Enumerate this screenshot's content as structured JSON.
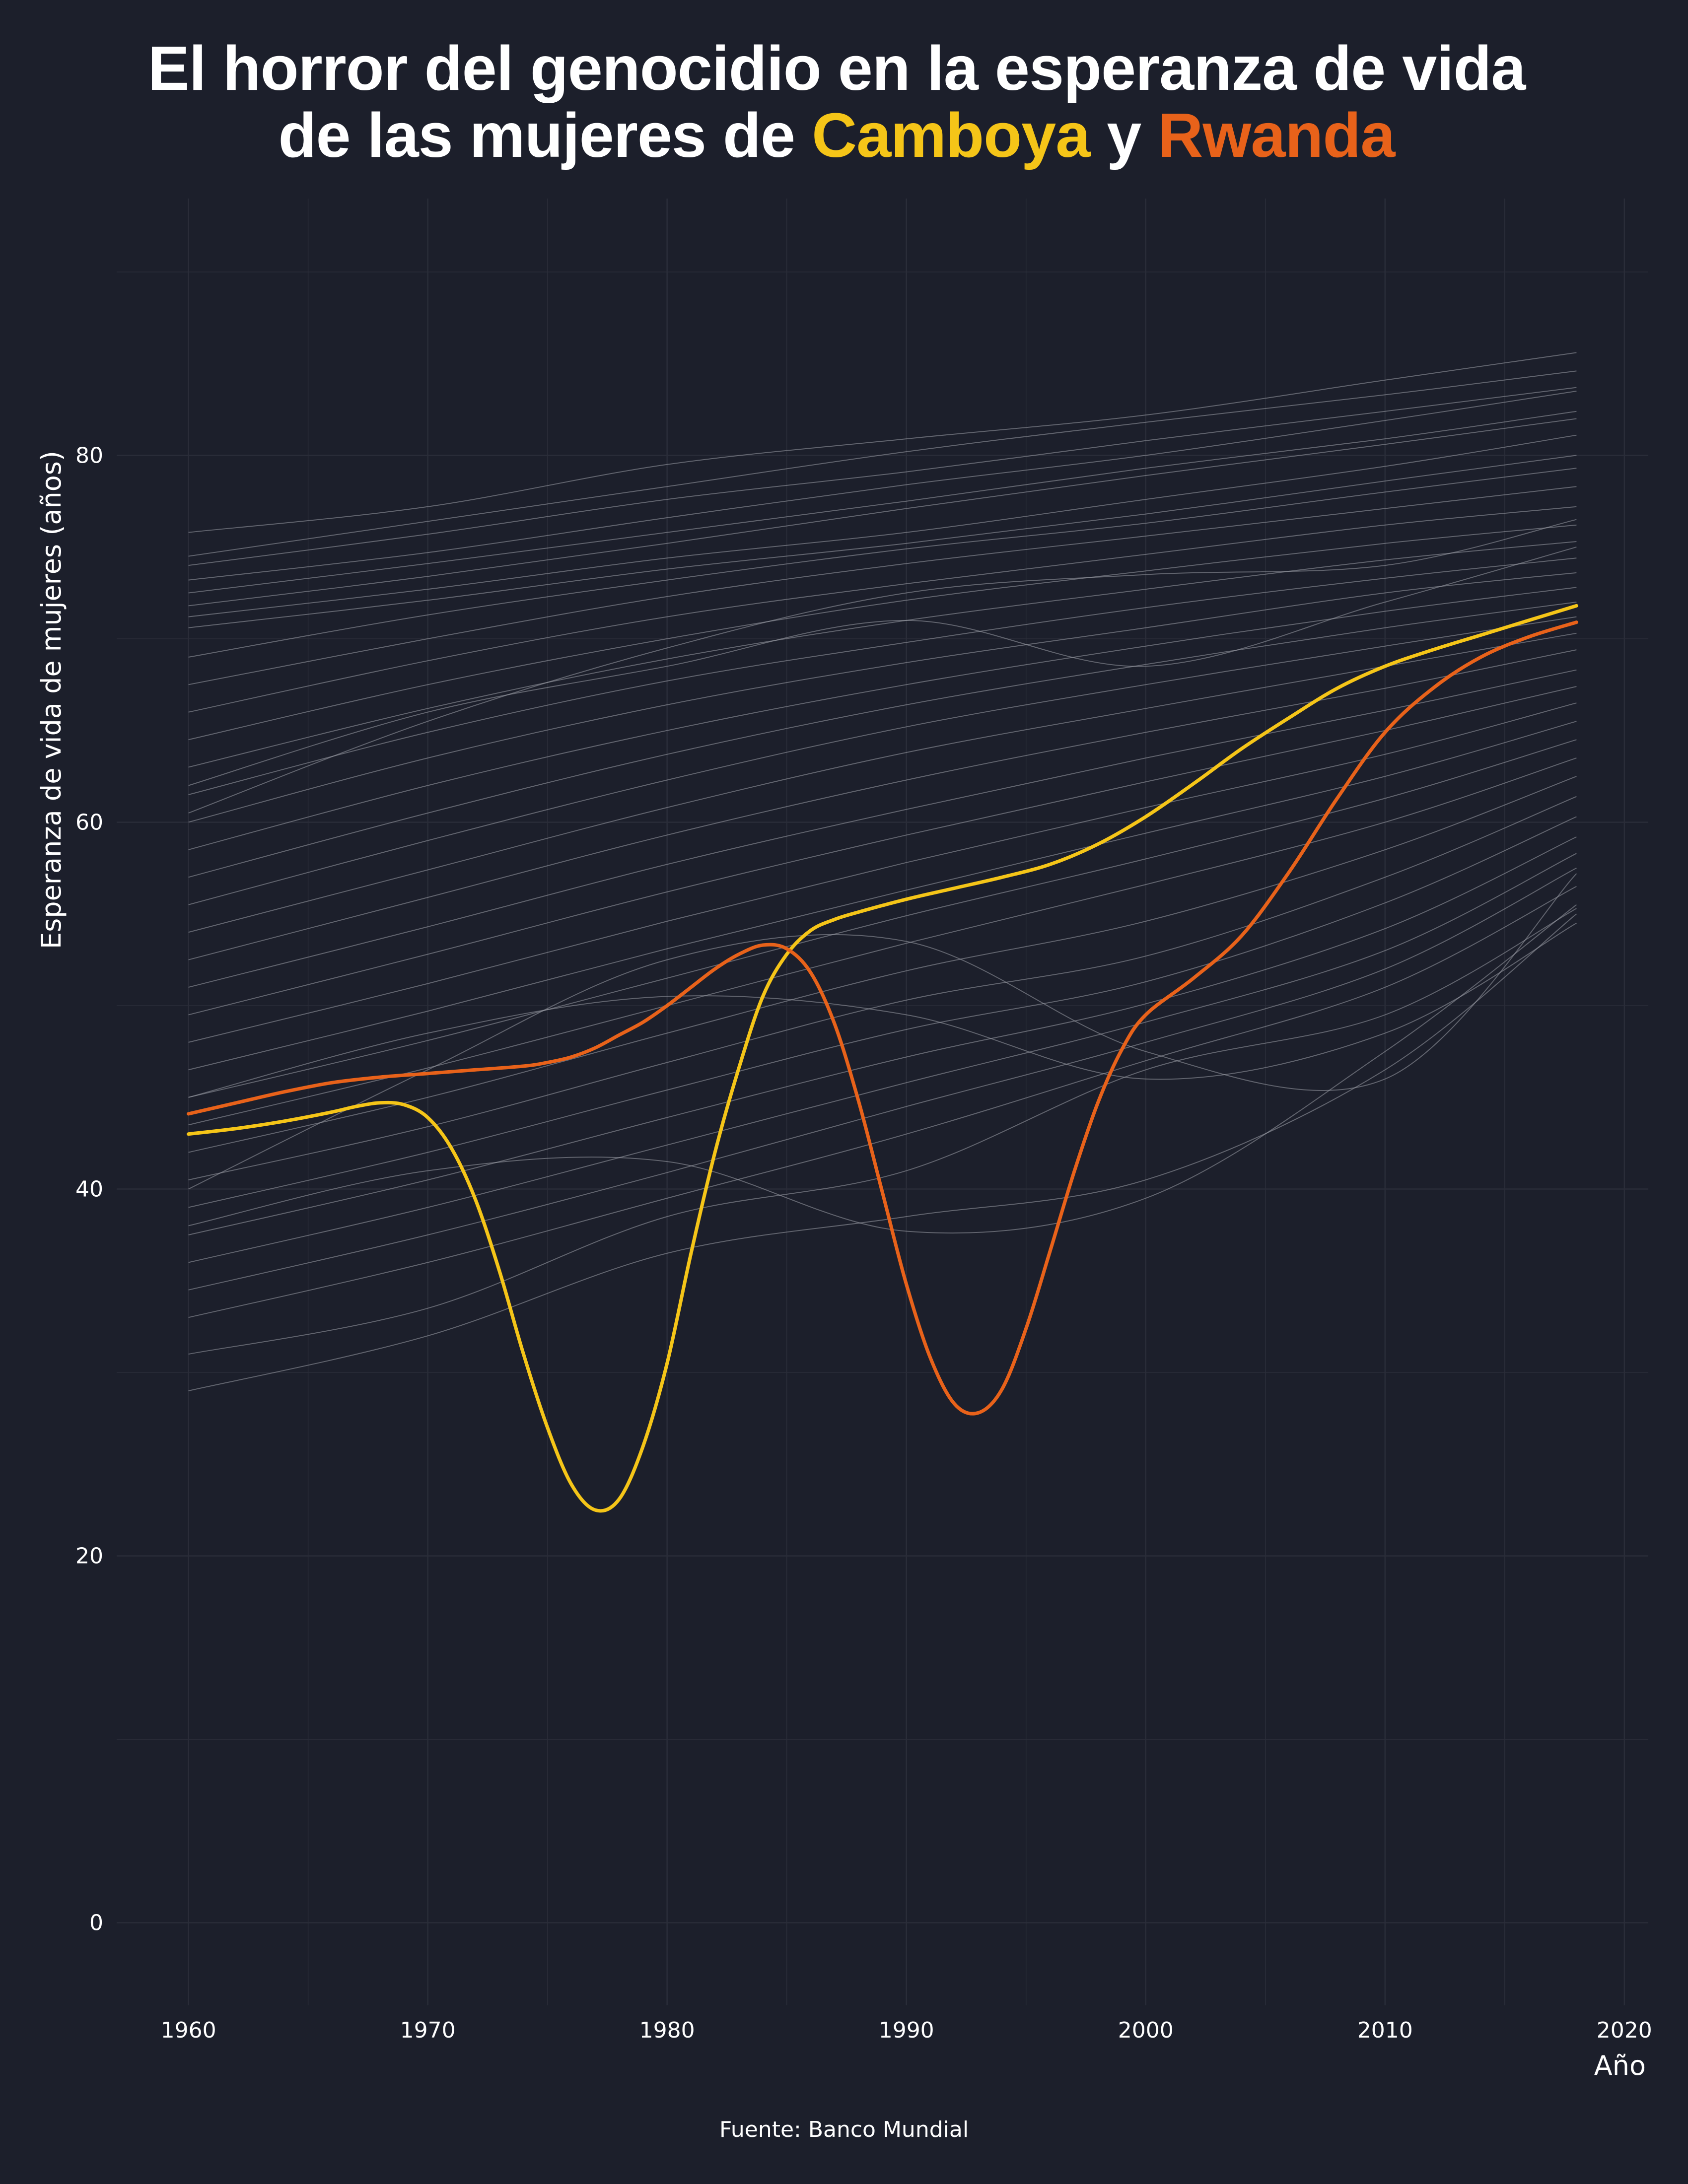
{
  "title": {
    "line1": "El horror del genocidio en la esperanza de vida",
    "line2_prefix": "de las mujeres de ",
    "highlight1": "Camboya",
    "connector": " y ",
    "highlight2": "Rwanda"
  },
  "caption": "Fuente: Banco Mundial",
  "colors": {
    "background": "#1c1f2b",
    "grid": "#2a2d39",
    "background_lines": "#9a9ca6",
    "camboya": "#f5c518",
    "rwanda": "#e8621a",
    "text": "#ffffff"
  },
  "chart_data": {
    "type": "line",
    "title": "El horror del genocidio en la esperanza de vida de las mujeres de Camboya y Rwanda",
    "xlabel": "Año",
    "ylabel": "Esperanza de vida de mujeres (años)",
    "xlim": [
      1957,
      2021
    ],
    "ylim": [
      -4.5,
      94
    ],
    "x_ticks": [
      1960,
      1970,
      1980,
      1990,
      2000,
      2010,
      2020
    ],
    "y_ticks": [
      0,
      20,
      40,
      60,
      80
    ],
    "grid": true,
    "legend": "none (series named in title colors)",
    "series": [
      {
        "name": "Camboya",
        "color": "#f5c518",
        "x": [
          1960,
          1962,
          1964,
          1966,
          1967,
          1968,
          1969,
          1970,
          1971,
          1972,
          1973,
          1974,
          1975,
          1976,
          1977,
          1978,
          1979,
          1980,
          1981,
          1982,
          1983,
          1984,
          1985,
          1986,
          1987,
          1988,
          1990,
          1992,
          1994,
          1996,
          1998,
          2000,
          2002,
          2004,
          2006,
          2008,
          2010,
          2012,
          2014,
          2016,
          2018
        ],
        "y": [
          43,
          43.3,
          43.7,
          44.2,
          44.5,
          44.7,
          44.6,
          43.9,
          42.2,
          39.4,
          35.5,
          31,
          27,
          23.9,
          22.5,
          23.1,
          26,
          30.5,
          36.5,
          42,
          46.6,
          50.5,
          52.8,
          54.1,
          54.7,
          55.1,
          55.8,
          56.4,
          57,
          57.7,
          58.8,
          60.3,
          62.1,
          64,
          65.7,
          67.3,
          68.5,
          69.4,
          70.2,
          71,
          71.8
        ]
      },
      {
        "name": "Rwanda",
        "color": "#e8621a",
        "x": [
          1960,
          1962,
          1964,
          1966,
          1968,
          1970,
          1972,
          1974,
          1975,
          1976,
          1977,
          1978,
          1979,
          1980,
          1981,
          1982,
          1983,
          1984,
          1985,
          1986,
          1987,
          1988,
          1989,
          1990,
          1991,
          1992,
          1993,
          1994,
          1995,
          1996,
          1997,
          1998,
          1999,
          2000,
          2002,
          2004,
          2006,
          2008,
          2010,
          2012,
          2014,
          2016,
          2018
        ],
        "y": [
          44.1,
          44.7,
          45.3,
          45.8,
          46.1,
          46.3,
          46.5,
          46.7,
          46.9,
          47.2,
          47.7,
          48.4,
          49.1,
          50,
          51,
          52,
          52.8,
          53.3,
          53.1,
          51.8,
          49,
          44.8,
          39.8,
          34.8,
          30.8,
          28.3,
          27.8,
          29.1,
          32.4,
          36.6,
          40.9,
          44.7,
          47.6,
          49.5,
          51.5,
          53.8,
          57.3,
          61.3,
          64.9,
          67.3,
          69,
          70.1,
          70.9
        ]
      },
      {
        "name": "",
        "role": "background_countries",
        "x": [
          1960,
          1970,
          1980,
          1990,
          2000,
          2010,
          2018
        ],
        "values": [
          [
            75.8,
            77.2,
            79.5,
            80.9,
            82.2,
            84.1,
            85.6
          ],
          [
            74.5,
            76.4,
            78.3,
            80.2,
            81.8,
            83.3,
            84.6
          ],
          [
            74,
            75.7,
            77.6,
            79.1,
            80.8,
            82.4,
            83.7
          ],
          [
            73.2,
            74.7,
            76.6,
            78.4,
            80,
            81.9,
            83.5
          ],
          [
            72.5,
            74.1,
            75.8,
            77.5,
            79.3,
            80.9,
            82.4
          ],
          [
            71.8,
            73.4,
            75.2,
            77.1,
            78.9,
            80.6,
            82
          ],
          [
            71.2,
            72.7,
            74.4,
            75.8,
            77.6,
            79.4,
            81.1
          ],
          [
            70.6,
            72.1,
            73.8,
            75.2,
            76.8,
            78.6,
            80
          ],
          [
            69,
            71.3,
            73.2,
            74.9,
            76.3,
            78,
            79.3
          ],
          [
            67.5,
            70,
            72.3,
            74.1,
            75.6,
            77.1,
            78.3
          ],
          [
            66,
            68.8,
            71.2,
            73,
            74.6,
            76.2,
            77.2
          ],
          [
            64.5,
            67.5,
            70,
            72.1,
            73.7,
            75.2,
            76.2
          ],
          [
            63,
            66.2,
            68.9,
            71,
            72.7,
            74.3,
            75.3
          ],
          [
            61.5,
            64.9,
            67.7,
            69.8,
            71.7,
            73.3,
            74.4
          ],
          [
            60,
            63.5,
            66.4,
            68.7,
            70.6,
            72.5,
            73.6
          ],
          [
            58.5,
            62,
            65,
            67.5,
            69.6,
            71.5,
            72.8
          ],
          [
            57,
            60.5,
            63.7,
            66.4,
            68.6,
            70.6,
            72
          ],
          [
            55.5,
            59,
            62.3,
            65.2,
            67.5,
            69.6,
            71.2
          ],
          [
            54,
            57.4,
            60.8,
            63.8,
            66.2,
            68.5,
            70.3
          ],
          [
            52.5,
            55.9,
            59.3,
            62.3,
            64.9,
            67.3,
            69.4
          ],
          [
            51,
            54.3,
            57.7,
            60.7,
            63.5,
            66.1,
            68.3
          ],
          [
            49.5,
            52.8,
            56.2,
            59.3,
            62.2,
            65,
            67.4
          ],
          [
            48,
            51.2,
            54.6,
            57.8,
            60.8,
            63.7,
            66.5
          ],
          [
            46.5,
            49.7,
            53.1,
            56.3,
            59.4,
            62.5,
            65.5
          ],
          [
            45,
            48.1,
            51.5,
            54.9,
            58,
            61.3,
            64.5
          ],
          [
            43.5,
            46.6,
            50,
            53.4,
            56.6,
            60,
            63.5
          ],
          [
            42,
            45,
            48.5,
            51.9,
            54.6,
            58.5,
            62.5
          ],
          [
            40.5,
            43.4,
            46.9,
            50.3,
            52.7,
            57,
            61.4
          ],
          [
            39,
            42,
            45.4,
            48.7,
            51.3,
            55.6,
            60.3
          ],
          [
            37.5,
            40.5,
            43.9,
            47.2,
            50.1,
            54.2,
            59.2
          ],
          [
            36,
            39,
            42.4,
            45.8,
            49.1,
            53,
            58.3
          ],
          [
            34.5,
            37.5,
            40.9,
            44.5,
            48,
            52,
            57.5
          ],
          [
            33,
            36,
            39.5,
            43,
            47,
            51,
            56.5
          ],
          [
            31,
            33.5,
            38.5,
            41,
            46.5,
            49.5,
            55.3
          ],
          [
            29,
            32,
            36.5,
            38.5,
            40.5,
            46.5,
            55
          ],
          [
            38,
            41,
            41.5,
            37.7,
            39.5,
            47.5,
            55.5
          ],
          [
            40,
            46.5,
            52.5,
            53.5,
            47.5,
            46,
            57.2
          ],
          [
            45,
            48.5,
            50.5,
            49.5,
            46,
            48.5,
            54.5
          ],
          [
            62,
            66,
            68.5,
            71,
            68.5,
            72,
            75
          ],
          [
            60.5,
            65.5,
            69.5,
            72.5,
            73.5,
            74,
            76.5
          ]
        ]
      }
    ]
  }
}
